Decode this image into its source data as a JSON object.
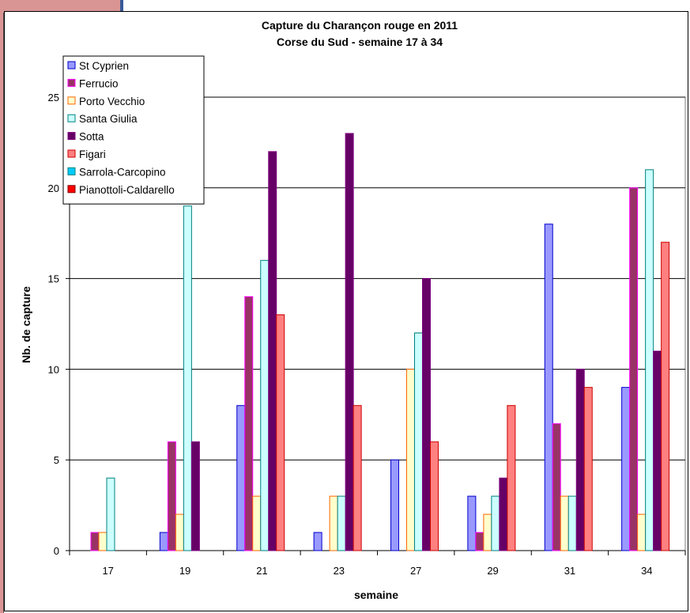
{
  "chart_data": {
    "type": "bar",
    "title": "Capture du Charançon rouge en 2011",
    "subtitle": "Corse du Sud - semaine 17 à 34",
    "xlabel": "semaine",
    "ylabel": "Nb. de capture",
    "categories": [
      "17",
      "19",
      "21",
      "23",
      "27",
      "29",
      "31",
      "34"
    ],
    "ylim": [
      0,
      25
    ],
    "yticks": [
      0,
      5,
      10,
      15,
      20,
      25
    ],
    "grid": true,
    "legend": "top-left",
    "series": [
      {
        "name": "St Cyprien",
        "fill": "#9999ff",
        "stroke": "#0000cc",
        "values": [
          0,
          1,
          8,
          1,
          5,
          3,
          18,
          9
        ]
      },
      {
        "name": "Ferrucio",
        "fill": "#993366",
        "stroke": "#ff00ff",
        "values": [
          1,
          6,
          14,
          0,
          0,
          1,
          7,
          20
        ]
      },
      {
        "name": "Porto Vecchio",
        "fill": "#ffffcc",
        "stroke": "#ff6600",
        "values": [
          1,
          2,
          3,
          3,
          10,
          2,
          3,
          2
        ]
      },
      {
        "name": "Santa Giulia",
        "fill": "#ccffff",
        "stroke": "#008080",
        "values": [
          4,
          19,
          16,
          3,
          12,
          3,
          3,
          21
        ]
      },
      {
        "name": "Sotta",
        "fill": "#660066",
        "stroke": "#800080",
        "values": [
          0,
          6,
          22,
          23,
          15,
          4,
          10,
          11
        ]
      },
      {
        "name": "Figari",
        "fill": "#ff8080",
        "stroke": "#cc0000",
        "values": [
          0,
          0,
          13,
          8,
          6,
          8,
          9,
          17
        ]
      },
      {
        "name": "Sarrola-Carcopino",
        "fill": "#00ccff",
        "stroke": "#008080",
        "values": [
          0,
          0,
          0,
          0,
          0,
          0,
          0,
          0
        ]
      },
      {
        "name": "Pianottoli-Caldarello",
        "fill": "#ff0000",
        "stroke": "#800000",
        "values": [
          0,
          0,
          0,
          0,
          0,
          0,
          0,
          0
        ]
      }
    ]
  }
}
